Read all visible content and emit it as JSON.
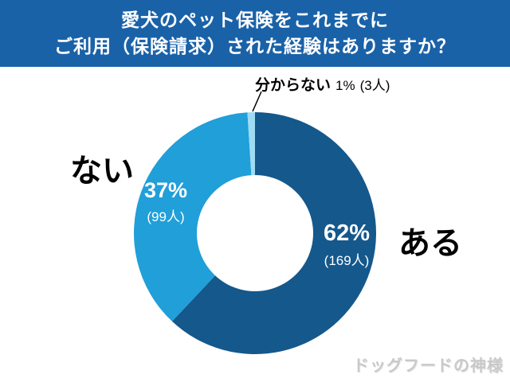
{
  "header": {
    "title_line1": "愛犬のペット保険をこれまでに",
    "title_line2": "ご利用（保険請求）された経験はありますか？"
  },
  "chart_data": {
    "type": "pie",
    "donut": true,
    "title": "愛犬のペット保険をこれまでにご利用（保険請求）された経験はありますか？",
    "labels": [
      "ある",
      "ない",
      "分からない"
    ],
    "values": [
      62,
      37,
      1
    ],
    "counts": [
      169,
      99,
      3
    ],
    "colors": [
      "#14588c",
      "#209fd9",
      "#9fdbf2"
    ],
    "start_angle_deg": 0,
    "direction": "clockwise",
    "legend_position": "none",
    "annotations": {
      "aru": {
        "label": "ある",
        "pct": "62%",
        "count": "(169人)"
      },
      "nai": {
        "label": "ない",
        "pct": "37%",
        "count": "(99人)"
      },
      "wakaranai": {
        "label": "分からない",
        "pct": "1%",
        "count": "(3人)"
      }
    }
  },
  "watermark": {
    "text": "ドッグフードの神様"
  }
}
